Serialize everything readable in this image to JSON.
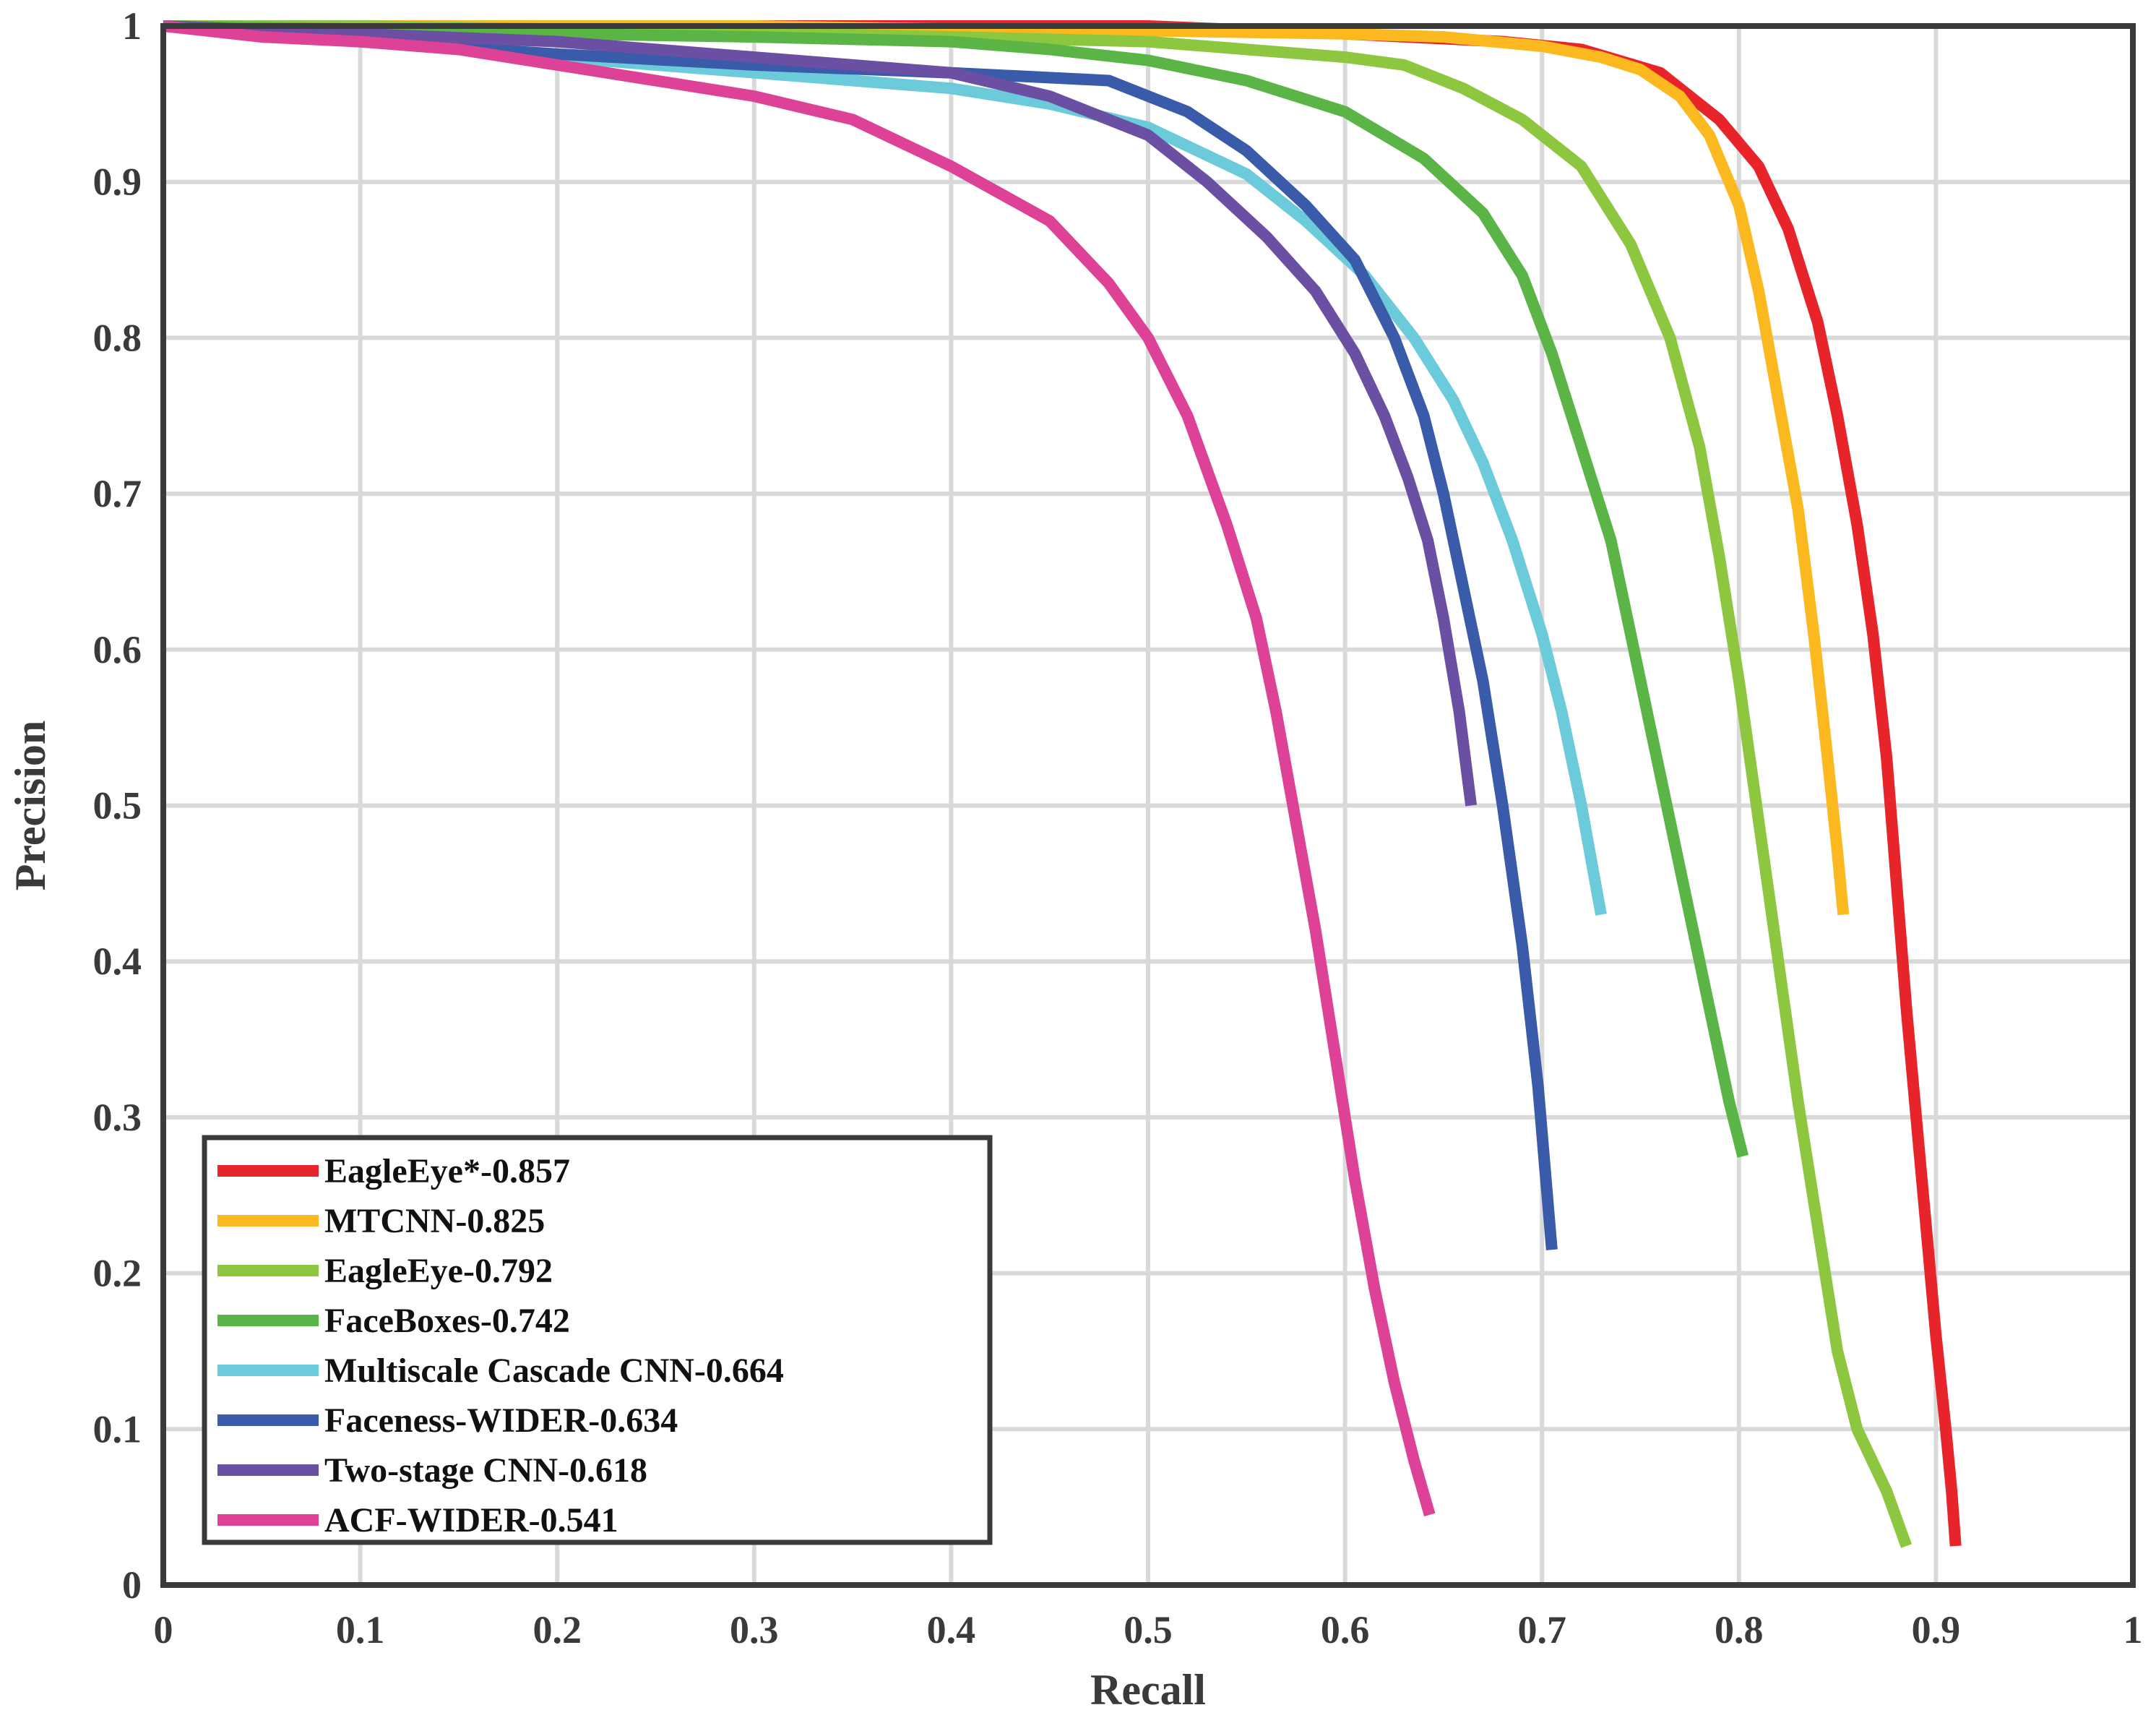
{
  "chart_data": {
    "type": "line",
    "title": "",
    "xlabel": "Recall",
    "ylabel": "Precision",
    "xlim": [
      0,
      1
    ],
    "ylim": [
      0,
      1
    ],
    "grid": true,
    "legend_position": "bottom-left",
    "xticks": [
      "0",
      "0.1",
      "0.2",
      "0.3",
      "0.4",
      "0.5",
      "0.6",
      "0.7",
      "0.8",
      "0.9",
      "1"
    ],
    "yticks": [
      "0",
      "0.1",
      "0.2",
      "0.3",
      "0.4",
      "0.5",
      "0.6",
      "0.7",
      "0.8",
      "0.9",
      "1"
    ],
    "series": [
      {
        "name": "EagleEye*-0.857",
        "color": "#e8242b",
        "points": [
          [
            0,
            1
          ],
          [
            0.1,
            1
          ],
          [
            0.2,
            1
          ],
          [
            0.3,
            1
          ],
          [
            0.4,
            1
          ],
          [
            0.5,
            1
          ],
          [
            0.6,
            0.995
          ],
          [
            0.68,
            0.99
          ],
          [
            0.72,
            0.985
          ],
          [
            0.76,
            0.97
          ],
          [
            0.79,
            0.94
          ],
          [
            0.81,
            0.91
          ],
          [
            0.825,
            0.87
          ],
          [
            0.84,
            0.81
          ],
          [
            0.85,
            0.75
          ],
          [
            0.86,
            0.68
          ],
          [
            0.868,
            0.61
          ],
          [
            0.875,
            0.53
          ],
          [
            0.88,
            0.45
          ],
          [
            0.885,
            0.37
          ],
          [
            0.89,
            0.3
          ],
          [
            0.895,
            0.23
          ],
          [
            0.9,
            0.16
          ],
          [
            0.905,
            0.1
          ],
          [
            0.908,
            0.06
          ],
          [
            0.91,
            0.025
          ]
        ]
      },
      {
        "name": "MTCNN-0.825",
        "color": "#fbb81f",
        "points": [
          [
            0,
            1
          ],
          [
            0.1,
            1
          ],
          [
            0.2,
            1
          ],
          [
            0.3,
            1
          ],
          [
            0.4,
            0.998
          ],
          [
            0.5,
            0.997
          ],
          [
            0.6,
            0.995
          ],
          [
            0.65,
            0.993
          ],
          [
            0.7,
            0.987
          ],
          [
            0.73,
            0.98
          ],
          [
            0.75,
            0.972
          ],
          [
            0.77,
            0.955
          ],
          [
            0.785,
            0.93
          ],
          [
            0.8,
            0.885
          ],
          [
            0.81,
            0.83
          ],
          [
            0.82,
            0.76
          ],
          [
            0.83,
            0.69
          ],
          [
            0.838,
            0.61
          ],
          [
            0.845,
            0.53
          ],
          [
            0.85,
            0.47
          ],
          [
            0.853,
            0.43
          ]
        ]
      },
      {
        "name": "EagleEye-0.792",
        "color": "#8dc63f",
        "points": [
          [
            0,
            1
          ],
          [
            0.1,
            1
          ],
          [
            0.2,
            0.998
          ],
          [
            0.3,
            0.996
          ],
          [
            0.4,
            0.993
          ],
          [
            0.5,
            0.99
          ],
          [
            0.55,
            0.985
          ],
          [
            0.6,
            0.98
          ],
          [
            0.63,
            0.975
          ],
          [
            0.66,
            0.96
          ],
          [
            0.69,
            0.94
          ],
          [
            0.72,
            0.91
          ],
          [
            0.745,
            0.86
          ],
          [
            0.765,
            0.8
          ],
          [
            0.78,
            0.73
          ],
          [
            0.79,
            0.66
          ],
          [
            0.8,
            0.58
          ],
          [
            0.81,
            0.49
          ],
          [
            0.82,
            0.4
          ],
          [
            0.83,
            0.31
          ],
          [
            0.84,
            0.23
          ],
          [
            0.85,
            0.15
          ],
          [
            0.86,
            0.1
          ],
          [
            0.875,
            0.06
          ],
          [
            0.885,
            0.025
          ]
        ]
      },
      {
        "name": "FaceBoxes-0.742",
        "color": "#5bb546",
        "points": [
          [
            0,
            1
          ],
          [
            0.1,
            0.998
          ],
          [
            0.2,
            0.995
          ],
          [
            0.3,
            0.993
          ],
          [
            0.4,
            0.99
          ],
          [
            0.45,
            0.985
          ],
          [
            0.5,
            0.978
          ],
          [
            0.55,
            0.965
          ],
          [
            0.6,
            0.945
          ],
          [
            0.64,
            0.915
          ],
          [
            0.67,
            0.88
          ],
          [
            0.69,
            0.84
          ],
          [
            0.705,
            0.79
          ],
          [
            0.72,
            0.73
          ],
          [
            0.735,
            0.67
          ],
          [
            0.745,
            0.61
          ],
          [
            0.755,
            0.55
          ],
          [
            0.765,
            0.49
          ],
          [
            0.775,
            0.43
          ],
          [
            0.785,
            0.37
          ],
          [
            0.795,
            0.31
          ],
          [
            0.802,
            0.275
          ]
        ]
      },
      {
        "name": "Multiscale Cascade CNN-0.664",
        "color": "#6ccbdb",
        "points": [
          [
            0,
            1
          ],
          [
            0.1,
            0.99
          ],
          [
            0.2,
            0.98
          ],
          [
            0.3,
            0.97
          ],
          [
            0.4,
            0.96
          ],
          [
            0.45,
            0.95
          ],
          [
            0.5,
            0.935
          ],
          [
            0.55,
            0.905
          ],
          [
            0.58,
            0.875
          ],
          [
            0.61,
            0.84
          ],
          [
            0.635,
            0.8
          ],
          [
            0.655,
            0.76
          ],
          [
            0.67,
            0.72
          ],
          [
            0.685,
            0.67
          ],
          [
            0.7,
            0.61
          ],
          [
            0.71,
            0.56
          ],
          [
            0.72,
            0.5
          ],
          [
            0.73,
            0.43
          ]
        ]
      },
      {
        "name": "Faceness-WIDER-0.634",
        "color": "#3a5baa",
        "points": [
          [
            0,
            1
          ],
          [
            0.1,
            0.99
          ],
          [
            0.2,
            0.982
          ],
          [
            0.3,
            0.975
          ],
          [
            0.4,
            0.97
          ],
          [
            0.48,
            0.965
          ],
          [
            0.52,
            0.945
          ],
          [
            0.55,
            0.92
          ],
          [
            0.58,
            0.885
          ],
          [
            0.605,
            0.85
          ],
          [
            0.625,
            0.8
          ],
          [
            0.64,
            0.75
          ],
          [
            0.65,
            0.7
          ],
          [
            0.66,
            0.64
          ],
          [
            0.67,
            0.58
          ],
          [
            0.68,
            0.5
          ],
          [
            0.69,
            0.41
          ],
          [
            0.698,
            0.32
          ],
          [
            0.705,
            0.215
          ]
        ]
      },
      {
        "name": "Two-stage CNN-0.618",
        "color": "#6a4fa3",
        "points": [
          [
            0,
            1
          ],
          [
            0.1,
            0.995
          ],
          [
            0.2,
            0.99
          ],
          [
            0.3,
            0.98
          ],
          [
            0.4,
            0.97
          ],
          [
            0.45,
            0.955
          ],
          [
            0.5,
            0.93
          ],
          [
            0.53,
            0.9
          ],
          [
            0.56,
            0.865
          ],
          [
            0.585,
            0.83
          ],
          [
            0.605,
            0.79
          ],
          [
            0.62,
            0.75
          ],
          [
            0.632,
            0.71
          ],
          [
            0.642,
            0.67
          ],
          [
            0.65,
            0.62
          ],
          [
            0.658,
            0.56
          ],
          [
            0.664,
            0.5
          ]
        ]
      },
      {
        "name": "ACF-WIDER-0.541",
        "color": "#de4297",
        "points": [
          [
            0,
            1
          ],
          [
            0.05,
            0.993
          ],
          [
            0.1,
            0.99
          ],
          [
            0.15,
            0.985
          ],
          [
            0.2,
            0.975
          ],
          [
            0.25,
            0.965
          ],
          [
            0.3,
            0.955
          ],
          [
            0.35,
            0.94
          ],
          [
            0.4,
            0.91
          ],
          [
            0.45,
            0.875
          ],
          [
            0.48,
            0.835
          ],
          [
            0.5,
            0.8
          ],
          [
            0.52,
            0.75
          ],
          [
            0.54,
            0.68
          ],
          [
            0.555,
            0.62
          ],
          [
            0.565,
            0.56
          ],
          [
            0.575,
            0.49
          ],
          [
            0.585,
            0.42
          ],
          [
            0.595,
            0.34
          ],
          [
            0.605,
            0.26
          ],
          [
            0.615,
            0.19
          ],
          [
            0.625,
            0.13
          ],
          [
            0.635,
            0.08
          ],
          [
            0.643,
            0.045
          ]
        ]
      }
    ]
  }
}
